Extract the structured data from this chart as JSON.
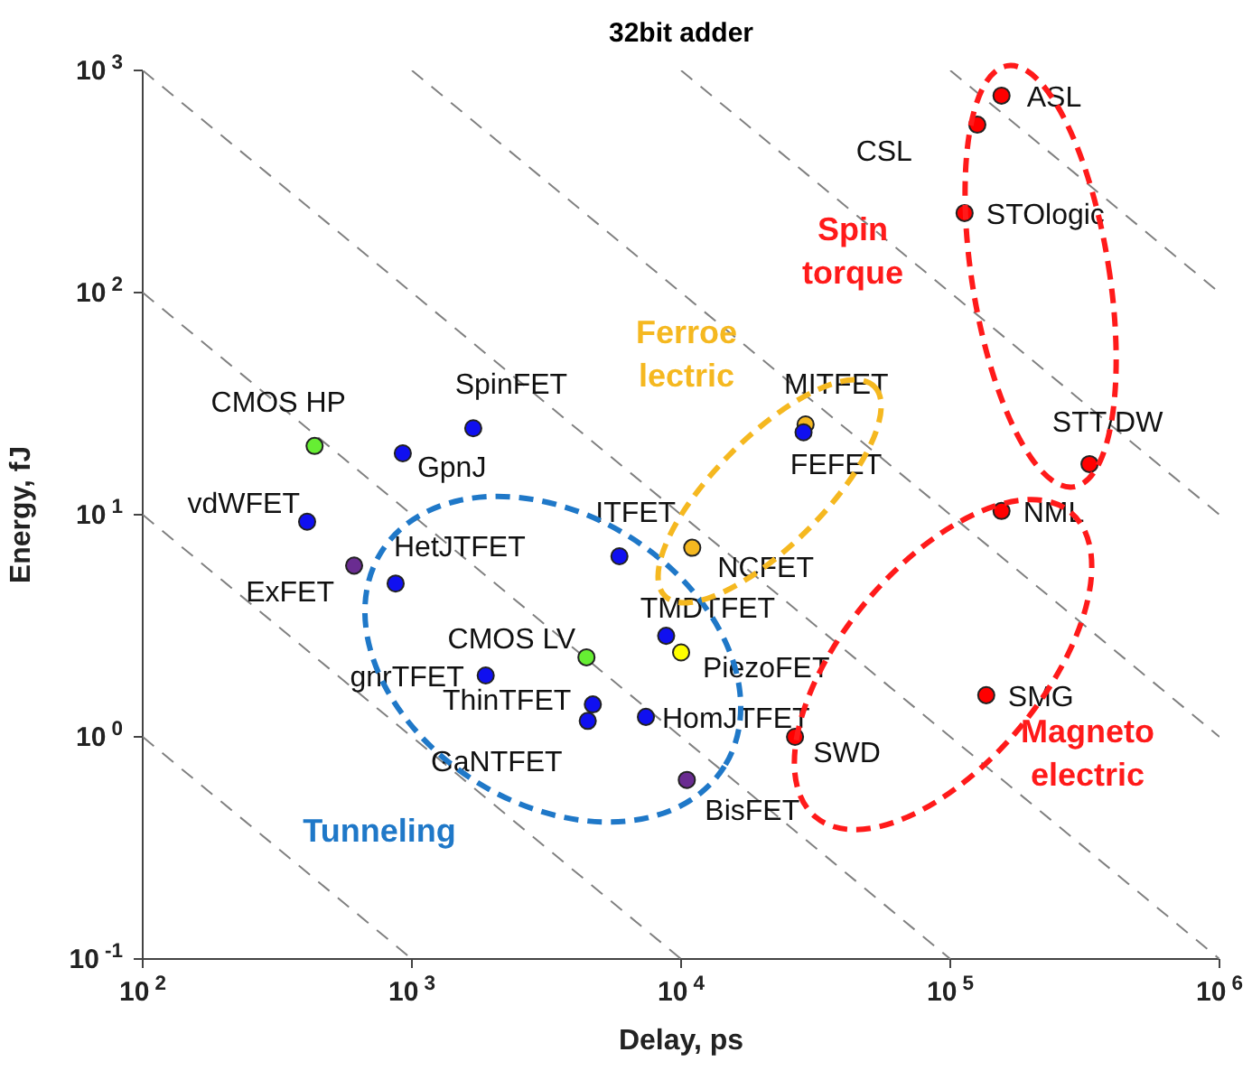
{
  "chart_data": {
    "type": "scatter",
    "title": "32bit adder",
    "xlabel": "Delay, ps",
    "ylabel": "Energy, fJ",
    "log": "xy",
    "marker": "circle",
    "xlim": [
      100,
      1000000
    ],
    "ylim": [
      0.1,
      1000
    ],
    "xticks": [
      {
        "value": 100,
        "label": "10$^{2}$"
      },
      {
        "value": 1000,
        "label": "10$^{3}$"
      },
      {
        "value": 10000,
        "label": "10$^{4}$"
      },
      {
        "value": 100000,
        "label": "10$^{5}$"
      },
      {
        "value": 1000000,
        "label": "10$^{6}$"
      }
    ],
    "yticks": [
      {
        "value": 0.1,
        "label": "10$^{-1}$"
      },
      {
        "value": 1,
        "label": "10$^{0}$"
      },
      {
        "value": 10,
        "label": "10$^{1}$"
      },
      {
        "value": 100,
        "label": "10$^{2}$"
      },
      {
        "value": 1000,
        "label": "10$^{3}$"
      }
    ],
    "series": [
      {
        "type": "line",
        "marker": "none",
        "color": "#808080",
        "line_style": "dashed",
        "x": [
          100,
          1000
        ],
        "values": [
          1,
          0.1
        ]
      },
      {
        "type": "line",
        "marker": "none",
        "color": "#808080",
        "line_style": "dashed",
        "x": [
          100,
          10000
        ],
        "values": [
          10,
          0.1
        ]
      },
      {
        "type": "line",
        "marker": "none",
        "color": "#808080",
        "line_style": "dashed",
        "x": [
          100,
          100000
        ],
        "values": [
          100,
          0.1
        ]
      },
      {
        "type": "line",
        "marker": "none",
        "color": "#808080",
        "line_style": "dashed",
        "x": [
          100,
          1000000
        ],
        "values": [
          1000,
          0.1
        ]
      },
      {
        "type": "line",
        "marker": "none",
        "color": "#808080",
        "line_style": "dashed",
        "x": [
          1000,
          1000000
        ],
        "values": [
          1000,
          1
        ]
      },
      {
        "type": "line",
        "marker": "none",
        "color": "#808080",
        "line_style": "dashed",
        "x": [
          10000,
          1000000
        ],
        "values": [
          1000,
          10
        ]
      },
      {
        "type": "line",
        "marker": "none",
        "color": "#808080",
        "line_style": "dashed",
        "x": [
          100000,
          1000000
        ],
        "values": [
          1000,
          100
        ]
      },
      {
        "x": [
          155000,
          126000,
          113000,
          329000,
          155000,
          136000,
          26500,
          29000,
          28500,
          11000,
          10000,
          8800,
          10500,
          7400,
          5900,
          4450,
          4700,
          4500,
          1880,
          1690,
          925,
          435,
          408,
          610,
          870
        ],
        "values": [
          770,
          570,
          228,
          16.9,
          10.4,
          1.54,
          1.0,
          25.5,
          23.5,
          7.1,
          2.4,
          2.85,
          0.64,
          1.23,
          6.5,
          2.28,
          1.4,
          1.18,
          1.89,
          24.5,
          18.9,
          20.4,
          9.3,
          5.9,
          4.9
        ],
        "colors": [
          "#ff0000",
          "#ff0000",
          "#ff0000",
          "#ff0000",
          "#ff0000",
          "#ff0000",
          "#ff0000",
          "#f5b820",
          "#1010f0",
          "#f5b820",
          "#ffff00",
          "#1010f0",
          "#6a2c91",
          "#1010f0",
          "#1010f0",
          "#66ee33",
          "#1010f0",
          "#1010f0",
          "#1010f0",
          "#1010f0",
          "#1010f0",
          "#66ee33",
          "#1010f0",
          "#6a2c91",
          "#1010f0"
        ]
      }
    ],
    "annotations": [
      {
        "text": "ASL",
        "x": 155000,
        "y": 770
      },
      {
        "text": "CSL",
        "x": 126000,
        "y": 570
      },
      {
        "text": "STOlogic",
        "x": 113000,
        "y": 228
      },
      {
        "text": "STT/DW",
        "x": 329000,
        "y": 16.9
      },
      {
        "text": "NML",
        "x": 155000,
        "y": 10.4
      },
      {
        "text": "SMG",
        "x": 136000,
        "y": 1.54
      },
      {
        "text": "SWD",
        "x": 26500,
        "y": 1.0
      },
      {
        "text": "MITFET",
        "x": 29000,
        "y": 25.5
      },
      {
        "text": "FEFET",
        "x": 28500,
        "y": 23.5
      },
      {
        "text": "NCFET",
        "x": 11000,
        "y": 7.1
      },
      {
        "text": "PiezoFET",
        "x": 10000,
        "y": 2.4
      },
      {
        "text": "TMDTFET",
        "x": 8800,
        "y": 2.85
      },
      {
        "text": "BisFET",
        "x": 10500,
        "y": 0.64
      },
      {
        "text": "HomJTFET",
        "x": 7400,
        "y": 1.23
      },
      {
        "text": "ITFET",
        "x": 5900,
        "y": 6.5
      },
      {
        "text": "CMOS LV",
        "x": 4450,
        "y": 2.28
      },
      {
        "text": "ThinTFET",
        "x": 4700,
        "y": 1.4
      },
      {
        "text": "GaNTFET",
        "x": 4500,
        "y": 1.18
      },
      {
        "text": "gnrTFET",
        "x": 1880,
        "y": 1.89
      },
      {
        "text": "SpinFET",
        "x": 1690,
        "y": 24.5
      },
      {
        "text": "GpnJ",
        "x": 925,
        "y": 18.9
      },
      {
        "text": "CMOS HP",
        "x": 435,
        "y": 20.4
      },
      {
        "text": "vdWFET",
        "x": 408,
        "y": 9.3
      },
      {
        "text": "ExFET",
        "x": 610,
        "y": 5.9
      },
      {
        "text": "HetJTFET",
        "x": 870,
        "y": 4.9
      },
      "Tunneling",
      "Ferroe\nlectric",
      "Spin\ntorque",
      "Magneto\nelectric"
    ]
  }
}
